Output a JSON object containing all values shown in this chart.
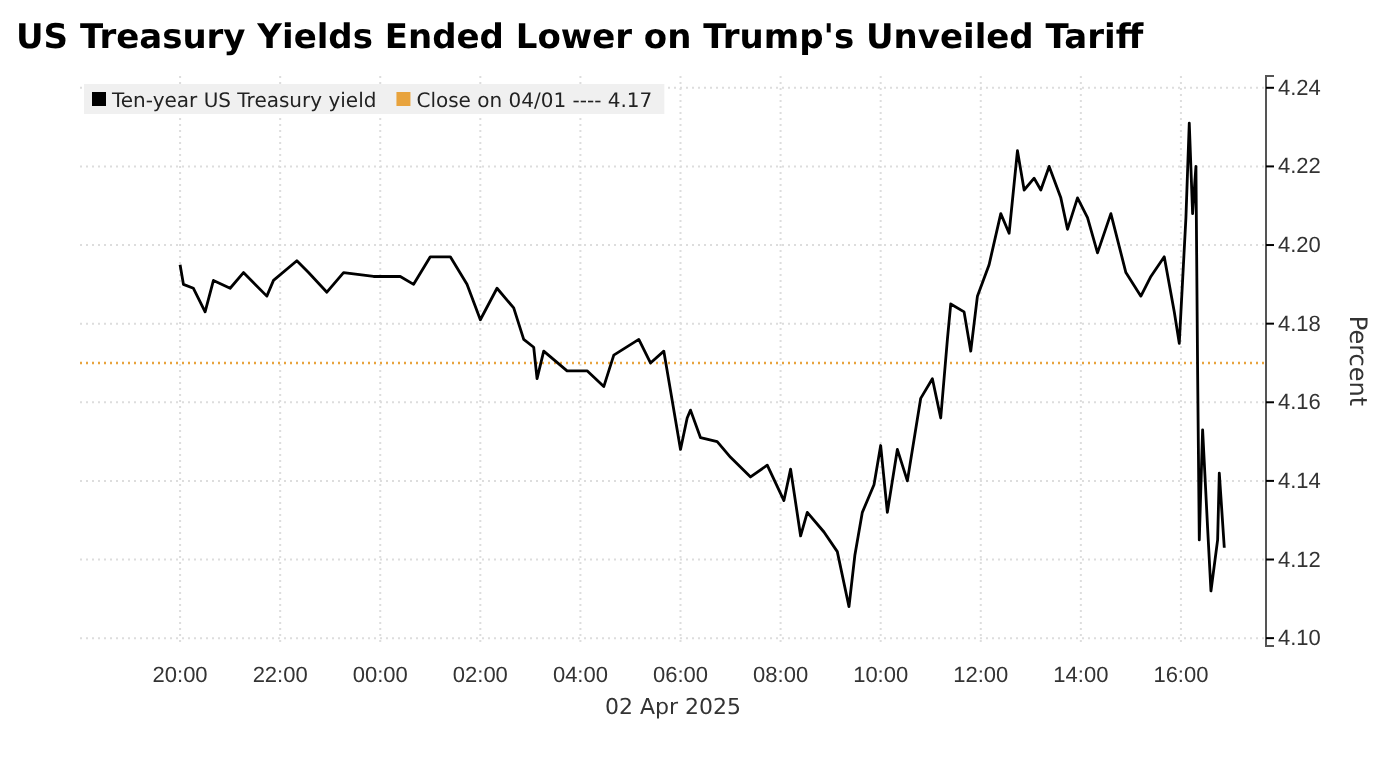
{
  "chart_data": {
    "type": "line",
    "title": "US Treasury Yields Ended Lower on Trump's Unveiled Tariff",
    "xlabel": "02 Apr 2025",
    "ylabel": "Percent",
    "xlim": [
      "2025-04-01T18:00",
      "2025-04-02T17:42"
    ],
    "ylim": [
      4.098,
      4.243
    ],
    "xticks": [
      {
        "value": "2025-04-01T20:00",
        "label": "20:00"
      },
      {
        "value": "2025-04-01T22:00",
        "label": "22:00"
      },
      {
        "value": "2025-04-02T00:00",
        "label": "00:00"
      },
      {
        "value": "2025-04-02T02:00",
        "label": "02:00"
      },
      {
        "value": "2025-04-02T04:00",
        "label": "04:00"
      },
      {
        "value": "2025-04-02T06:00",
        "label": "06:00"
      },
      {
        "value": "2025-04-02T08:00",
        "label": "08:00"
      },
      {
        "value": "2025-04-02T10:00",
        "label": "10:00"
      },
      {
        "value": "2025-04-02T12:00",
        "label": "12:00"
      },
      {
        "value": "2025-04-02T14:00",
        "label": "14:00"
      },
      {
        "value": "2025-04-02T16:00",
        "label": "16:00"
      }
    ],
    "yticks": [
      {
        "value": 4.1,
        "label": "4.10"
      },
      4.12,
      4.14,
      4.16,
      4.18,
      {
        "value": 4.2,
        "label": "4.20"
      },
      4.22,
      4.24
    ],
    "grid": true,
    "legend": "top left",
    "line_style": "solid",
    "marker": "none",
    "ref_lines": [
      {
        "axis": "y",
        "value": 4.17,
        "label": "Close on 04/01 ---- 4.17",
        "color": "#e8a33d",
        "line_style": "dotted"
      }
    ],
    "series": [
      {
        "name": "Ten-year US Treasury yield",
        "color": "#000000",
        "x": [
          "2025-04-01T20:00",
          "2025-04-01T20:04",
          "2025-04-01T20:16",
          "2025-04-01T20:30",
          "2025-04-01T20:40",
          "2025-04-01T21:00",
          "2025-04-01T21:16",
          "2025-04-01T21:44",
          "2025-04-01T21:52",
          "2025-04-01T22:20",
          "2025-04-01T22:34",
          "2025-04-01T22:56",
          "2025-04-01T23:16",
          "2025-04-01T23:52",
          "2025-04-02T00:24",
          "2025-04-02T00:40",
          "2025-04-02T01:00",
          "2025-04-02T01:24",
          "2025-04-02T01:44",
          "2025-04-02T02:00",
          "2025-04-02T02:20",
          "2025-04-02T02:40",
          "2025-04-02T02:52",
          "2025-04-02T03:04",
          "2025-04-02T03:08",
          "2025-04-02T03:16",
          "2025-04-02T03:44",
          "2025-04-02T04:08",
          "2025-04-02T04:28",
          "2025-04-02T04:40",
          "2025-04-02T05:10",
          "2025-04-02T05:24",
          "2025-04-02T05:40",
          "2025-04-02T05:48",
          "2025-04-02T06:00",
          "2025-04-02T06:08",
          "2025-04-02T06:12",
          "2025-04-02T06:24",
          "2025-04-02T06:44",
          "2025-04-02T07:00",
          "2025-04-02T07:24",
          "2025-04-02T07:44",
          "2025-04-02T08:04",
          "2025-04-02T08:12",
          "2025-04-02T08:24",
          "2025-04-02T08:32",
          "2025-04-02T08:52",
          "2025-04-02T09:08",
          "2025-04-02T09:22",
          "2025-04-02T09:29",
          "2025-04-02T09:38",
          "2025-04-02T09:52",
          "2025-04-02T10:00",
          "2025-04-02T10:08",
          "2025-04-02T10:20",
          "2025-04-02T10:32",
          "2025-04-02T10:48",
          "2025-04-02T11:02",
          "2025-04-02T11:12",
          "2025-04-02T11:20",
          "2025-04-02T11:24",
          "2025-04-02T11:40",
          "2025-04-02T11:48",
          "2025-04-02T11:56",
          "2025-04-02T12:10",
          "2025-04-02T12:24",
          "2025-04-02T12:34",
          "2025-04-02T12:44",
          "2025-04-02T12:52",
          "2025-04-02T13:04",
          "2025-04-02T13:12",
          "2025-04-02T13:22",
          "2025-04-02T13:36",
          "2025-04-02T13:44",
          "2025-04-02T13:56",
          "2025-04-02T14:08",
          "2025-04-02T14:20",
          "2025-04-02T14:36",
          "2025-04-02T14:54",
          "2025-04-02T15:12",
          "2025-04-02T15:24",
          "2025-04-02T15:40",
          "2025-04-02T15:52",
          "2025-04-02T15:58",
          "2025-04-02T16:00",
          "2025-04-02T16:06",
          "2025-04-02T16:10",
          "2025-04-02T16:14",
          "2025-04-02T16:18",
          "2025-04-02T16:20",
          "2025-04-02T16:22",
          "2025-04-02T16:26",
          "2025-04-02T16:32",
          "2025-04-02T16:36",
          "2025-04-02T16:44",
          "2025-04-02T16:46",
          "2025-04-02T16:52"
        ],
        "values": [
          4.195,
          4.19,
          4.189,
          4.183,
          4.191,
          4.189,
          4.193,
          4.187,
          4.191,
          4.196,
          4.193,
          4.188,
          4.193,
          4.192,
          4.192,
          4.19,
          4.197,
          4.197,
          4.19,
          4.181,
          4.189,
          4.184,
          4.176,
          4.174,
          4.166,
          4.173,
          4.168,
          4.168,
          4.164,
          4.172,
          4.176,
          4.17,
          4.173,
          4.163,
          4.148,
          4.156,
          4.158,
          4.151,
          4.15,
          4.146,
          4.141,
          4.144,
          4.135,
          4.143,
          4.126,
          4.132,
          4.127,
          4.122,
          4.108,
          4.121,
          4.132,
          4.139,
          4.149,
          4.132,
          4.148,
          4.14,
          4.161,
          4.166,
          4.156,
          4.176,
          4.185,
          4.183,
          4.173,
          4.187,
          4.195,
          4.208,
          4.203,
          4.224,
          4.214,
          4.217,
          4.214,
          4.22,
          4.212,
          4.204,
          4.212,
          4.207,
          4.198,
          4.208,
          4.193,
          4.187,
          4.192,
          4.197,
          4.183,
          4.175,
          4.183,
          4.207,
          4.231,
          4.208,
          4.22,
          4.168,
          4.125,
          4.153,
          4.128,
          4.112,
          4.125,
          4.142,
          4.123
        ]
      }
    ]
  }
}
